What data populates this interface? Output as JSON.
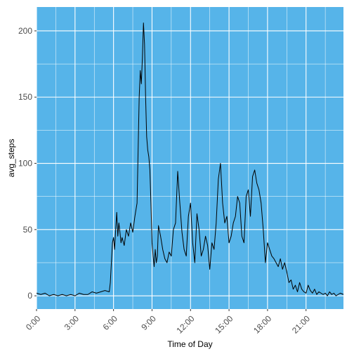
{
  "chart_data": {
    "type": "line",
    "title": "",
    "xlabel": "Time of Day",
    "ylabel": "avg_steps",
    "xlim": [
      "0:00",
      "23:55"
    ],
    "ylim": [
      -10,
      218
    ],
    "x_ticks": [
      "0:00",
      "3:00",
      "6:00",
      "9:00",
      "12:00",
      "15:00",
      "18:00",
      "21:00"
    ],
    "y_ticks": [
      0,
      50,
      100,
      150,
      200
    ],
    "grid": true,
    "legend": "none",
    "colors": {
      "panel": "#56b4e9",
      "grid": "#ffffff",
      "line": "#000000",
      "tick_text": "#4d4d4d",
      "tick_mark": "#333333"
    },
    "series": [
      {
        "x": [
          "0:00",
          "0:20",
          "0:40",
          "1:00",
          "1:20",
          "1:40",
          "2:00",
          "2:20",
          "2:40",
          "3:00",
          "3:20",
          "3:40",
          "4:00",
          "4:20",
          "4:40",
          "5:00",
          "5:20",
          "5:40",
          "5:45",
          "5:50",
          "5:55",
          "6:00",
          "6:05",
          "6:10",
          "6:15",
          "6:20",
          "6:25",
          "6:30",
          "6:35",
          "6:40",
          "6:50",
          "7:00",
          "7:10",
          "7:20",
          "7:30",
          "7:40",
          "7:50",
          "8:00",
          "8:05",
          "8:10",
          "8:15",
          "8:20",
          "8:25",
          "8:30",
          "8:35",
          "8:40",
          "8:45",
          "8:50",
          "8:55",
          "9:00",
          "9:05",
          "9:10",
          "9:15",
          "9:20",
          "9:25",
          "9:30",
          "9:40",
          "9:50",
          "10:00",
          "10:10",
          "10:20",
          "10:30",
          "10:40",
          "10:50",
          "11:00",
          "11:10",
          "11:20",
          "11:30",
          "11:40",
          "11:50",
          "12:00",
          "12:10",
          "12:20",
          "12:30",
          "12:40",
          "12:50",
          "13:00",
          "13:10",
          "13:20",
          "13:30",
          "13:40",
          "13:50",
          "14:00",
          "14:10",
          "14:20",
          "14:30",
          "14:40",
          "14:50",
          "15:00",
          "15:10",
          "15:20",
          "15:30",
          "15:40",
          "15:50",
          "16:00",
          "16:10",
          "16:20",
          "16:30",
          "16:40",
          "16:50",
          "17:00",
          "17:10",
          "17:20",
          "17:30",
          "17:40",
          "17:50",
          "18:00",
          "18:10",
          "18:20",
          "18:30",
          "18:40",
          "18:50",
          "19:00",
          "19:10",
          "19:20",
          "19:30",
          "19:40",
          "19:50",
          "20:00",
          "20:10",
          "20:20",
          "20:30",
          "20:40",
          "20:50",
          "21:00",
          "21:10",
          "21:20",
          "21:30",
          "21:40",
          "21:50",
          "22:00",
          "22:10",
          "22:20",
          "22:30",
          "22:40",
          "22:50",
          "23:00",
          "23:10",
          "23:20",
          "23:30",
          "23:40",
          "23:55"
        ],
        "values": [
          2,
          1,
          2,
          0,
          1,
          0,
          1,
          0,
          1,
          0,
          2,
          1,
          1,
          3,
          2,
          3,
          4,
          3,
          10,
          25,
          40,
          44,
          35,
          50,
          63,
          45,
          55,
          48,
          40,
          44,
          38,
          50,
          45,
          55,
          48,
          60,
          70,
          150,
          170,
          160,
          180,
          206,
          190,
          150,
          120,
          110,
          105,
          95,
          70,
          40,
          30,
          22,
          35,
          25,
          30,
          53,
          45,
          35,
          28,
          25,
          33,
          30,
          50,
          55,
          94,
          70,
          48,
          35,
          30,
          60,
          70,
          40,
          25,
          62,
          50,
          30,
          35,
          45,
          38,
          20,
          40,
          35,
          55,
          88,
          100,
          70,
          55,
          60,
          40,
          45,
          55,
          60,
          75,
          70,
          45,
          40,
          75,
          80,
          60,
          90,
          95,
          85,
          80,
          70,
          50,
          25,
          40,
          35,
          30,
          28,
          25,
          22,
          28,
          20,
          25,
          18,
          10,
          12,
          5,
          8,
          3,
          10,
          5,
          3,
          2,
          8,
          4,
          2,
          5,
          1,
          3,
          2,
          1,
          2,
          0,
          3,
          1,
          2,
          0,
          1,
          2,
          1
        ]
      }
    ]
  }
}
